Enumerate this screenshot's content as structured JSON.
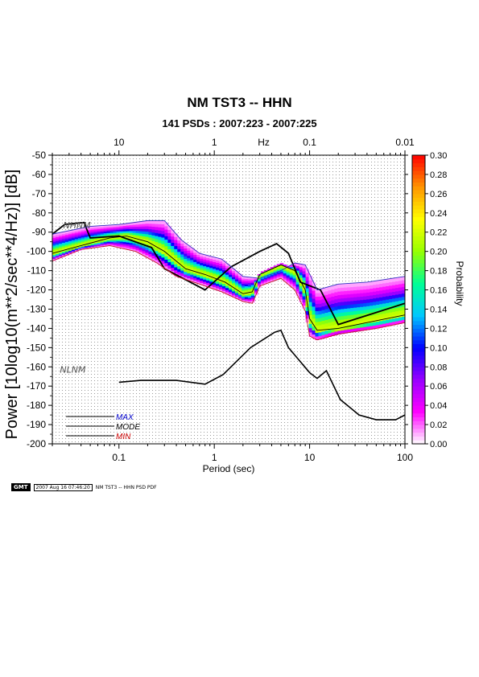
{
  "chart_data": {
    "type": "heatmap",
    "title": "NM TST3 -- HHN",
    "subtitle": "141 PSDs : 2007:223 - 2007:225",
    "xlabel": "Period (sec)",
    "ylabel": "Power [10log10(m**2/sec**4/Hz)] [dB]",
    "x_scale": "log",
    "xlim": [
      0.02,
      100
    ],
    "ylim": [
      -200,
      -50
    ],
    "x_ticks": [
      {
        "value": 0.1,
        "label": "0.1"
      },
      {
        "value": 1,
        "label": "1"
      },
      {
        "value": 10,
        "label": "10"
      },
      {
        "value": 100,
        "label": "100"
      }
    ],
    "y_ticks": [
      -50,
      -60,
      -70,
      -80,
      -90,
      -100,
      -110,
      -120,
      -130,
      -140,
      -150,
      -160,
      -170,
      -180,
      -190,
      -200
    ],
    "top_axis": {
      "unit_label": "Hz",
      "ticks": [
        {
          "value": 0.1,
          "label": "10"
        },
        {
          "value": 1,
          "label": "1"
        },
        {
          "value": 10,
          "label": "0.1"
        },
        {
          "value": 100,
          "label": "0.01"
        }
      ]
    },
    "colorbar": {
      "label": "Probability",
      "range": [
        0,
        0.3
      ],
      "ticks": [
        "0.00",
        "0.02",
        "0.04",
        "0.06",
        "0.08",
        "0.10",
        "0.12",
        "0.14",
        "0.16",
        "0.18",
        "0.20",
        "0.22",
        "0.24",
        "0.26",
        "0.28",
        "0.30"
      ],
      "colors": [
        "#ffffff",
        "#ff00ff",
        "#9900ff",
        "#0000ff",
        "#00c8ff",
        "#00ff96",
        "#96ff00",
        "#ffff00",
        "#ff9600",
        "#ff0000"
      ]
    },
    "grid": true,
    "model_labels": [
      "NHNM",
      "NLNM"
    ],
    "legend": {
      "placement": "bottom-left",
      "entries": [
        {
          "label": "MAX",
          "color": "#0000cc"
        },
        {
          "label": "MODE",
          "color": "#000000"
        },
        {
          "label": "MIN",
          "color": "#cc0000"
        }
      ]
    },
    "series": [
      {
        "name": "NHNM",
        "points": [
          [
            0.02,
            -91
          ],
          [
            0.027,
            -86
          ],
          [
            0.043,
            -85
          ],
          [
            0.05,
            -93
          ],
          [
            0.1,
            -92
          ],
          [
            0.22,
            -98
          ],
          [
            0.3,
            -109
          ],
          [
            0.8,
            -120
          ],
          [
            1.5,
            -108
          ],
          [
            3,
            -100
          ],
          [
            4.5,
            -96
          ],
          [
            6,
            -101
          ],
          [
            8,
            -116
          ],
          [
            13,
            -120
          ],
          [
            20,
            -138
          ],
          [
            100,
            -127
          ]
        ]
      },
      {
        "name": "NLNM",
        "points": [
          [
            0.1,
            -168
          ],
          [
            0.17,
            -167
          ],
          [
            0.4,
            -167
          ],
          [
            0.8,
            -169
          ],
          [
            1.24,
            -164
          ],
          [
            2.4,
            -150
          ],
          [
            4.3,
            -142
          ],
          [
            5,
            -141
          ],
          [
            6,
            -150
          ],
          [
            10,
            -163
          ],
          [
            12,
            -166
          ],
          [
            15,
            -162
          ],
          [
            21,
            -177
          ],
          [
            33,
            -185
          ],
          [
            50,
            -187.5
          ],
          [
            80,
            -187.5
          ],
          [
            100,
            -185
          ]
        ]
      },
      {
        "name": "MAX",
        "points": [
          [
            0.02,
            -91
          ],
          [
            0.05,
            -87
          ],
          [
            0.1,
            -86
          ],
          [
            0.2,
            -84
          ],
          [
            0.3,
            -84
          ],
          [
            0.45,
            -94
          ],
          [
            0.7,
            -101
          ],
          [
            1.2,
            -104
          ],
          [
            2,
            -113
          ],
          [
            3,
            -114
          ],
          [
            5,
            -110
          ],
          [
            7,
            -106
          ],
          [
            9,
            -107
          ],
          [
            12,
            -120
          ],
          [
            20,
            -117
          ],
          [
            40,
            -116
          ],
          [
            100,
            -113
          ]
        ]
      },
      {
        "name": "MODE",
        "points": [
          [
            0.02,
            -101
          ],
          [
            0.04,
            -97
          ],
          [
            0.08,
            -93
          ],
          [
            0.12,
            -92
          ],
          [
            0.2,
            -95
          ],
          [
            0.3,
            -100
          ],
          [
            0.5,
            -109
          ],
          [
            0.8,
            -112
          ],
          [
            1.3,
            -116
          ],
          [
            2,
            -122
          ],
          [
            2.5,
            -121
          ],
          [
            3,
            -112
          ],
          [
            5,
            -107
          ],
          [
            7,
            -110
          ],
          [
            9,
            -120
          ],
          [
            10,
            -135
          ],
          [
            12,
            -141
          ],
          [
            20,
            -140
          ],
          [
            40,
            -137
          ],
          [
            100,
            -133
          ]
        ]
      },
      {
        "name": "MIN",
        "points": [
          [
            0.02,
            -105
          ],
          [
            0.04,
            -99
          ],
          [
            0.08,
            -97
          ],
          [
            0.15,
            -100
          ],
          [
            0.25,
            -106
          ],
          [
            0.4,
            -113
          ],
          [
            0.7,
            -117
          ],
          [
            1.2,
            -121
          ],
          [
            2,
            -126
          ],
          [
            2.5,
            -127
          ],
          [
            3,
            -118
          ],
          [
            5,
            -114
          ],
          [
            7,
            -120
          ],
          [
            9,
            -131
          ],
          [
            10,
            -144
          ],
          [
            12,
            -146
          ],
          [
            20,
            -143
          ],
          [
            50,
            -140
          ],
          [
            100,
            -137
          ]
        ]
      }
    ]
  },
  "footer": {
    "logo": "GMT",
    "timestamp": "2007 Aug 16 07:46:20",
    "caption": "NM TST3 -- HHN PSD PDF"
  }
}
